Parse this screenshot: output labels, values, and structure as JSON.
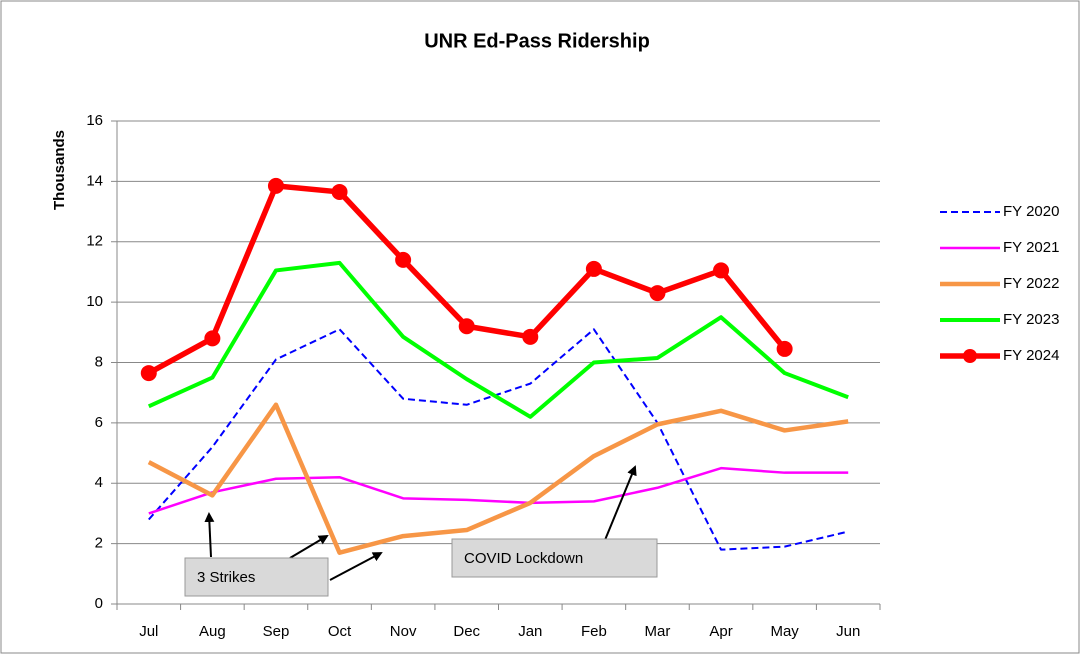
{
  "chart_data": {
    "type": "line",
    "title": "UNR Ed-Pass Ridership",
    "y_label": "Thousands",
    "categories": [
      "Jul",
      "Aug",
      "Sep",
      "Oct",
      "Nov",
      "Dec",
      "Jan",
      "Feb",
      "Mar",
      "Apr",
      "May",
      "Jun"
    ],
    "ylim": [
      0,
      16
    ],
    "yticks": [
      0,
      2,
      4,
      6,
      8,
      10,
      12,
      14,
      16
    ],
    "grid": true,
    "legend": "right",
    "series": [
      {
        "name": "FY 2020",
        "color": "#0000ff",
        "line_style": "dashed",
        "values": [
          2.8,
          5.2,
          8.1,
          9.1,
          6.8,
          6.6,
          7.3,
          9.1,
          6.0,
          1.8,
          1.9,
          2.4
        ]
      },
      {
        "name": "FY 2021",
        "color": "#ff00ff",
        "values": [
          3.0,
          3.7,
          4.15,
          4.2,
          3.5,
          3.45,
          3.35,
          3.4,
          3.85,
          4.5,
          4.35,
          4.35
        ]
      },
      {
        "name": "FY 2022",
        "color": "#f79646",
        "values": [
          4.7,
          3.6,
          6.6,
          1.7,
          2.25,
          2.45,
          3.35,
          4.9,
          5.95,
          6.4,
          5.75,
          6.05
        ]
      },
      {
        "name": "FY 2023",
        "color": "#00ff00",
        "values": [
          6.55,
          7.5,
          11.05,
          11.3,
          8.85,
          7.45,
          6.2,
          8.0,
          8.15,
          9.5,
          7.65,
          6.85
        ]
      },
      {
        "name": "FY 2024",
        "color": "#ff0000",
        "markers": true,
        "values": [
          7.65,
          8.8,
          13.85,
          13.65,
          11.4,
          9.2,
          8.85,
          11.1,
          10.3,
          11.05,
          8.45,
          null
        ]
      }
    ],
    "annotations": [
      "3 Strikes",
      "COVID Lockdown"
    ]
  }
}
